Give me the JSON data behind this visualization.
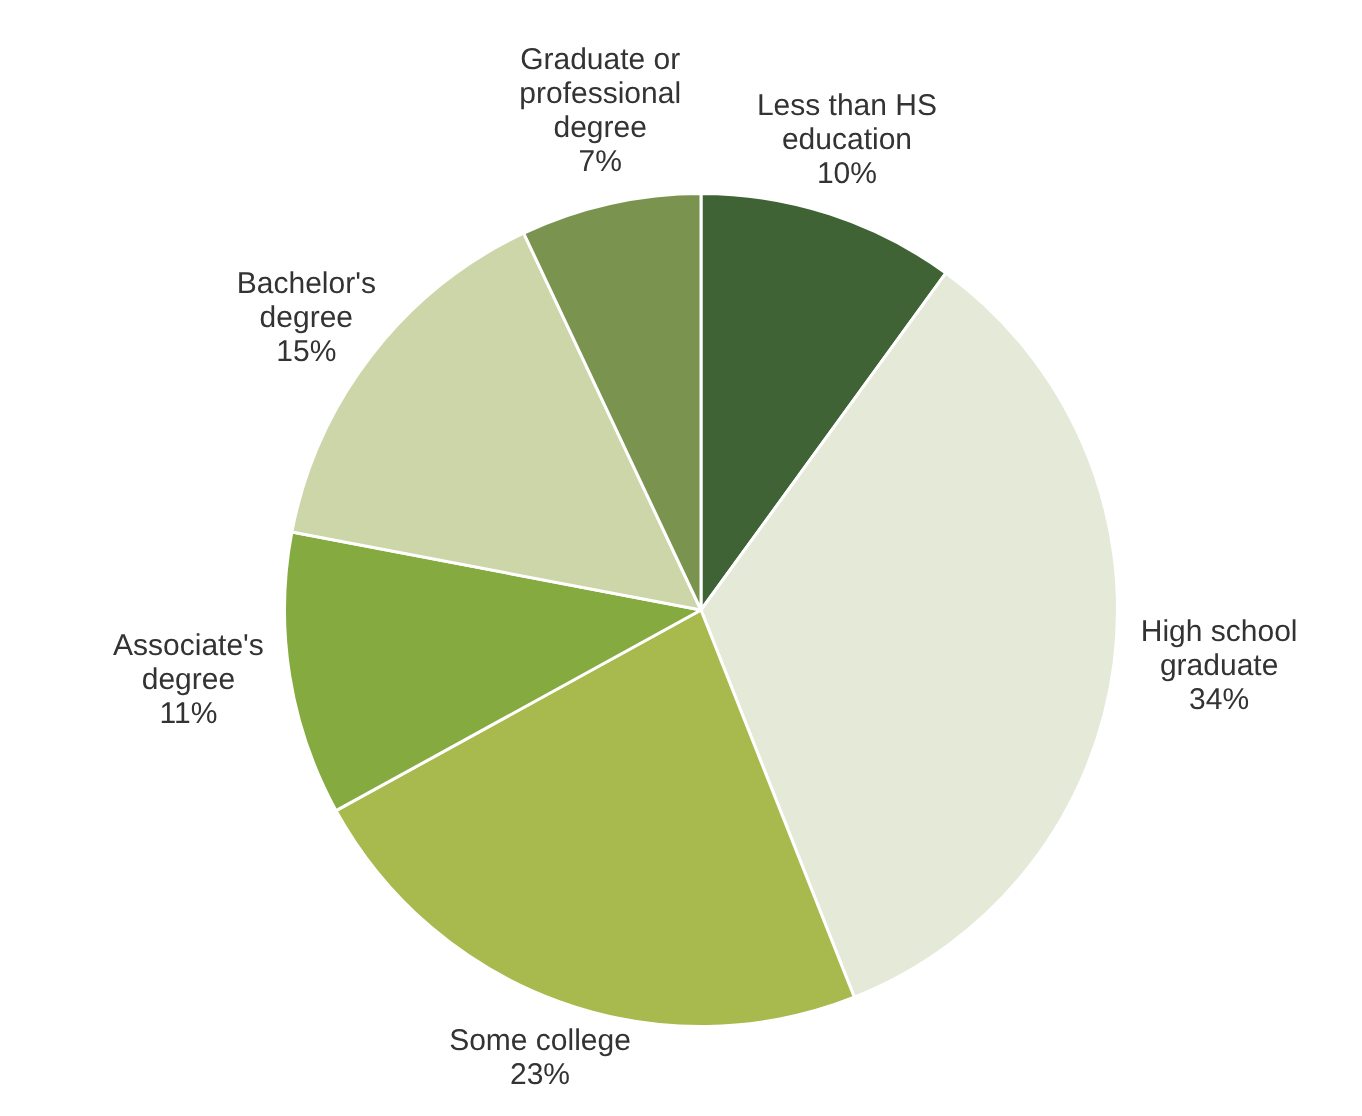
{
  "chart_data": {
    "type": "pie",
    "categories": [
      "Less than HS education",
      "High school graduate",
      "Some college",
      "Associate's degree",
      "Bachelor's degree",
      "Graduate or professional degree"
    ],
    "values": [
      10,
      34,
      23,
      11,
      15,
      7
    ],
    "colors": [
      "#3f6335",
      "#e4e9d8",
      "#a8b94d",
      "#84aa40",
      "#ccd6a9",
      "#7a9450"
    ],
    "value_labels": [
      "10%",
      "34%",
      "23%",
      "11%",
      "15%",
      "7%"
    ],
    "legend": false
  }
}
